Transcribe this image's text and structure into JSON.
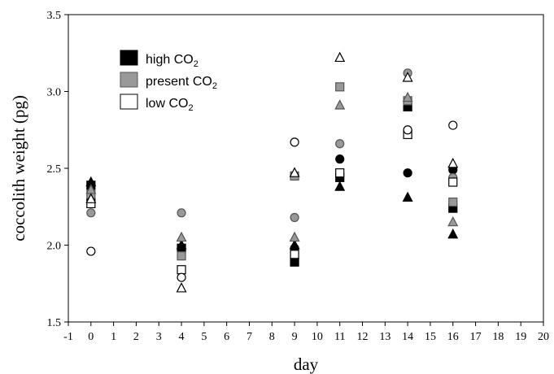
{
  "chart_data": {
    "type": "scatter",
    "xlabel": "day",
    "ylabel": "coccolith weight (pg)",
    "xlim": [
      -1,
      20
    ],
    "ylim": [
      1.5,
      3.5
    ],
    "xticks": [
      -1,
      0,
      1,
      2,
      3,
      4,
      5,
      6,
      7,
      8,
      9,
      10,
      11,
      12,
      13,
      14,
      15,
      16,
      17,
      18,
      19,
      20
    ],
    "yticks": [
      1.5,
      2.0,
      2.5,
      3.0,
      3.5
    ],
    "ytick_labels": [
      "1.5",
      "2.0",
      "2.5",
      "3.0",
      "3.5"
    ],
    "grid": false,
    "legend_position": "top-left",
    "legend": [
      {
        "key": "high",
        "label": "high CO",
        "sub": "2",
        "fill": "#000000"
      },
      {
        "key": "present",
        "label": "present CO",
        "sub": "2",
        "fill": "#999999"
      },
      {
        "key": "low",
        "label": "low CO",
        "sub": "2",
        "fill": "#ffffff"
      }
    ],
    "colors": {
      "high": "#000000",
      "present": "#999999",
      "low": "#ffffff"
    },
    "points": [
      {
        "day": 0,
        "value": 2.39,
        "treatment": "high",
        "marker": "square"
      },
      {
        "day": 0,
        "value": 2.3,
        "treatment": "high",
        "marker": "circle"
      },
      {
        "day": 0,
        "value": 2.41,
        "treatment": "high",
        "marker": "triangle"
      },
      {
        "day": 0,
        "value": 2.33,
        "treatment": "present",
        "marker": "square"
      },
      {
        "day": 0,
        "value": 2.21,
        "treatment": "present",
        "marker": "circle"
      },
      {
        "day": 0,
        "value": 2.36,
        "treatment": "present",
        "marker": "triangle"
      },
      {
        "day": 0,
        "value": 2.27,
        "treatment": "low",
        "marker": "square"
      },
      {
        "day": 0,
        "value": 1.96,
        "treatment": "low",
        "marker": "circle"
      },
      {
        "day": 0,
        "value": 2.3,
        "treatment": "low",
        "marker": "triangle"
      },
      {
        "day": 4,
        "value": 1.98,
        "treatment": "high",
        "marker": "square"
      },
      {
        "day": 4,
        "value": 1.96,
        "treatment": "high",
        "marker": "circle"
      },
      {
        "day": 4,
        "value": 2.0,
        "treatment": "high",
        "marker": "triangle"
      },
      {
        "day": 4,
        "value": 1.93,
        "treatment": "present",
        "marker": "square"
      },
      {
        "day": 4,
        "value": 2.21,
        "treatment": "present",
        "marker": "circle"
      },
      {
        "day": 4,
        "value": 2.05,
        "treatment": "present",
        "marker": "triangle"
      },
      {
        "day": 4,
        "value": 1.84,
        "treatment": "low",
        "marker": "square"
      },
      {
        "day": 4,
        "value": 1.79,
        "treatment": "low",
        "marker": "circle"
      },
      {
        "day": 4,
        "value": 1.72,
        "treatment": "low",
        "marker": "triangle"
      },
      {
        "day": 9,
        "value": 1.89,
        "treatment": "high",
        "marker": "square"
      },
      {
        "day": 9,
        "value": 1.98,
        "treatment": "high",
        "marker": "circle"
      },
      {
        "day": 9,
        "value": 2.0,
        "treatment": "high",
        "marker": "triangle"
      },
      {
        "day": 9,
        "value": 2.45,
        "treatment": "present",
        "marker": "square"
      },
      {
        "day": 9,
        "value": 2.18,
        "treatment": "present",
        "marker": "circle"
      },
      {
        "day": 9,
        "value": 2.05,
        "treatment": "present",
        "marker": "triangle"
      },
      {
        "day": 9,
        "value": 1.94,
        "treatment": "low",
        "marker": "square"
      },
      {
        "day": 9,
        "value": 2.67,
        "treatment": "low",
        "marker": "circle"
      },
      {
        "day": 9,
        "value": 2.47,
        "treatment": "low",
        "marker": "triangle"
      },
      {
        "day": 11,
        "value": 2.44,
        "treatment": "high",
        "marker": "square"
      },
      {
        "day": 11,
        "value": 2.56,
        "treatment": "high",
        "marker": "circle"
      },
      {
        "day": 11,
        "value": 2.38,
        "treatment": "high",
        "marker": "triangle"
      },
      {
        "day": 11,
        "value": 3.03,
        "treatment": "present",
        "marker": "square"
      },
      {
        "day": 11,
        "value": 2.66,
        "treatment": "present",
        "marker": "circle"
      },
      {
        "day": 11,
        "value": 2.91,
        "treatment": "present",
        "marker": "triangle"
      },
      {
        "day": 11,
        "value": 2.47,
        "treatment": "low",
        "marker": "square"
      },
      {
        "day": 11,
        "value": 3.22,
        "treatment": "low",
        "marker": "triangle"
      },
      {
        "day": 14,
        "value": 2.9,
        "treatment": "high",
        "marker": "square"
      },
      {
        "day": 14,
        "value": 2.47,
        "treatment": "high",
        "marker": "circle"
      },
      {
        "day": 14,
        "value": 2.31,
        "treatment": "high",
        "marker": "triangle"
      },
      {
        "day": 14,
        "value": 2.94,
        "treatment": "present",
        "marker": "square"
      },
      {
        "day": 14,
        "value": 3.12,
        "treatment": "present",
        "marker": "circle"
      },
      {
        "day": 14,
        "value": 2.96,
        "treatment": "present",
        "marker": "triangle"
      },
      {
        "day": 14,
        "value": 2.72,
        "treatment": "low",
        "marker": "square"
      },
      {
        "day": 14,
        "value": 2.75,
        "treatment": "low",
        "marker": "circle"
      },
      {
        "day": 14,
        "value": 3.09,
        "treatment": "low",
        "marker": "triangle"
      },
      {
        "day": 16,
        "value": 2.24,
        "treatment": "high",
        "marker": "square"
      },
      {
        "day": 16,
        "value": 2.49,
        "treatment": "high",
        "marker": "circle"
      },
      {
        "day": 16,
        "value": 2.07,
        "treatment": "high",
        "marker": "triangle"
      },
      {
        "day": 16,
        "value": 2.28,
        "treatment": "present",
        "marker": "square"
      },
      {
        "day": 16,
        "value": 2.44,
        "treatment": "present",
        "marker": "circle"
      },
      {
        "day": 16,
        "value": 2.15,
        "treatment": "present",
        "marker": "triangle"
      },
      {
        "day": 16,
        "value": 2.41,
        "treatment": "low",
        "marker": "square"
      },
      {
        "day": 16,
        "value": 2.78,
        "treatment": "low",
        "marker": "circle"
      },
      {
        "day": 16,
        "value": 2.53,
        "treatment": "low",
        "marker": "triangle"
      }
    ]
  }
}
